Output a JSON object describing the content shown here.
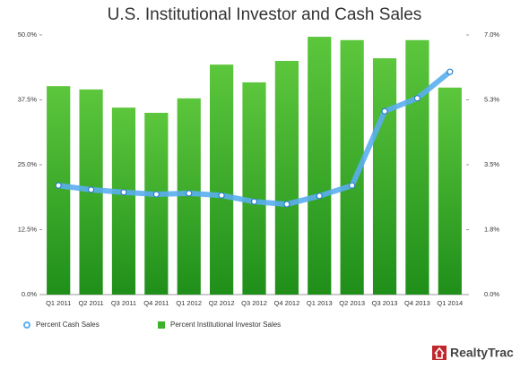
{
  "chart_data": {
    "type": "bar-line",
    "title": "U.S. Institutional Investor and Cash Sales",
    "categories": [
      "Q1 2011",
      "Q2 2011",
      "Q3 2011",
      "Q4 2011",
      "Q1 2012",
      "Q2 2012",
      "Q3 2012",
      "Q4 2012",
      "Q1 2013",
      "Q2 2013",
      "Q3 2013",
      "Q4 2013",
      "Q1 2014"
    ],
    "series": [
      {
        "name": "Percent Cash Sales",
        "type": "line",
        "axis": "y",
        "color": "#5aaef0",
        "values": [
          21.0,
          20.2,
          19.7,
          19.3,
          19.5,
          19.1,
          17.9,
          17.4,
          19.0,
          21.0,
          35.3,
          37.8,
          42.9
        ]
      },
      {
        "name": "Percent Institutional Investor Sales",
        "type": "bar",
        "axis": "y2",
        "color": "#3cb22a",
        "values": [
          5.62,
          5.53,
          5.04,
          4.9,
          5.29,
          6.2,
          5.72,
          6.3,
          6.95,
          6.86,
          6.37,
          6.86,
          5.58
        ]
      }
    ],
    "ylim": [
      0,
      50
    ],
    "yticks": [
      {
        "value": 0,
        "label": "0.0%"
      },
      {
        "value": 12.5,
        "label": "12.5%"
      },
      {
        "value": 25,
        "label": "25.0%"
      },
      {
        "value": 37.5,
        "label": "37.5%"
      },
      {
        "value": 50,
        "label": "50.0%"
      }
    ],
    "y2lim": [
      0,
      7
    ],
    "y2ticks": [
      {
        "value": 0,
        "label": "0.0%"
      },
      {
        "value": 1.75,
        "label": "1.8%"
      },
      {
        "value": 3.5,
        "label": "3.5%"
      },
      {
        "value": 5.25,
        "label": "5.3%"
      },
      {
        "value": 7,
        "label": "7.0%"
      }
    ],
    "grid": false,
    "logo": "RealtyTrac"
  }
}
